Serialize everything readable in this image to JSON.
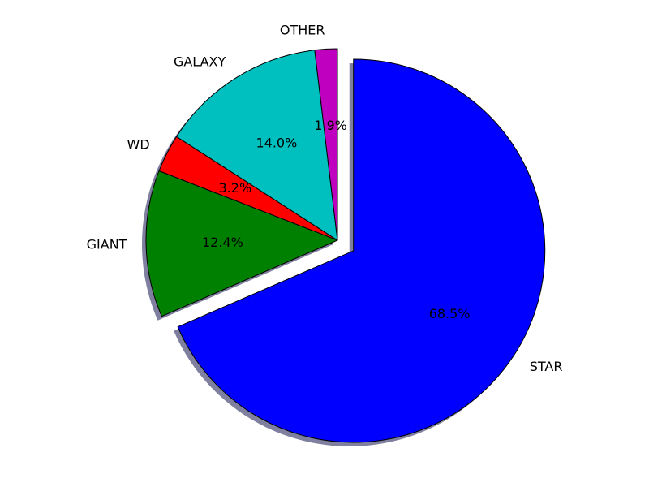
{
  "chart_data": {
    "type": "pie",
    "title": "",
    "categories": [
      "STAR",
      "GIANT",
      "WD",
      "GALAXY",
      "OTHER"
    ],
    "values": [
      68.5,
      12.4,
      3.2,
      14.0,
      1.9
    ],
    "value_labels": [
      "68.5%",
      "12.4%",
      "3.2%",
      "14.0%",
      "1.9%"
    ],
    "colors": [
      "#0000ff",
      "#008000",
      "#ff0000",
      "#00bfbf",
      "#bf00bf"
    ],
    "start_angle_deg": 90,
    "direction": "clockwise",
    "exploded": [
      "STAR"
    ],
    "shadow": true,
    "legend": "none"
  }
}
